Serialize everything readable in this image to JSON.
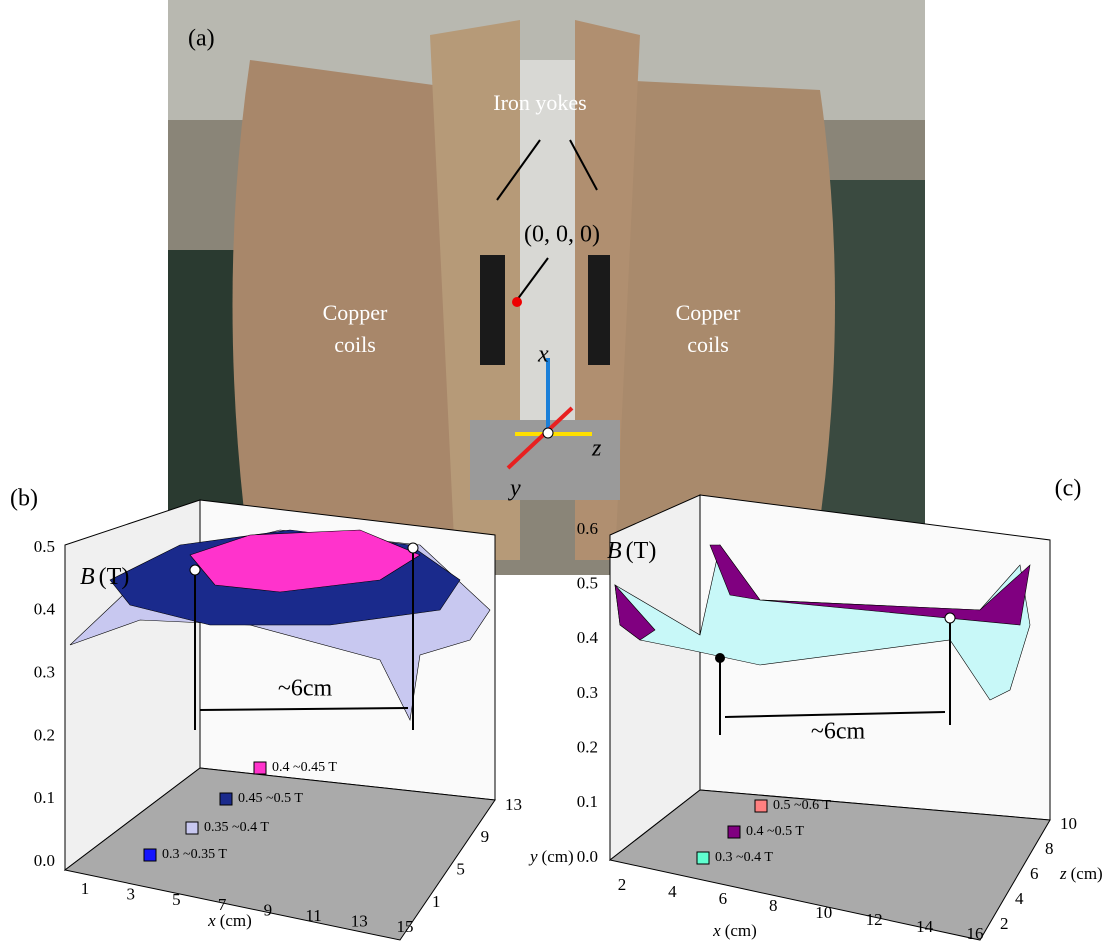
{
  "panel_a": {
    "label": "(a)",
    "iron_yokes": "Iron yokes",
    "origin": "(0, 0, 0)",
    "coils_left": "Copper\ncoils",
    "coils_right": "Copper\ncoils",
    "axis_x": "x",
    "axis_y": "y",
    "axis_z": "z"
  },
  "panel_b": {
    "label": "(b)",
    "b_axis": {
      "symbol": "B",
      "unit": "(T)"
    },
    "b_ticks": [
      "0.0",
      "0.1",
      "0.2",
      "0.3",
      "0.4",
      "0.5"
    ],
    "x_axis": {
      "symbol": "x",
      "unit": "(cm)"
    },
    "x_ticks": [
      "1",
      "3",
      "5",
      "7",
      "9",
      "11",
      "13",
      "15"
    ],
    "y_axis": {
      "symbol": "y",
      "unit": "(cm)"
    },
    "y_ticks": [
      "1",
      "5",
      "9",
      "13"
    ],
    "distance": "~6cm",
    "legend": [
      {
        "label": "0.4 ~0.45 T",
        "color": "#ff33cc"
      },
      {
        "label": "0.45 ~0.5 T",
        "color": "#1a2a8c"
      },
      {
        "label": "0.35 ~0.4 T",
        "color": "#c8c8f0"
      },
      {
        "label": "0.3 ~0.35 T",
        "color": "#1414ff"
      }
    ]
  },
  "panel_c": {
    "label": "(c)",
    "b_axis": {
      "symbol": "B",
      "unit": "(T)"
    },
    "b_ticks": [
      "0.0",
      "0.1",
      "0.2",
      "0.3",
      "0.4",
      "0.5",
      "0.6"
    ],
    "x_axis": {
      "symbol": "x",
      "unit": "(cm)"
    },
    "x_ticks": [
      "2",
      "4",
      "6",
      "8",
      "10",
      "12",
      "14",
      "16"
    ],
    "z_axis": {
      "symbol": "z",
      "unit": "(cm)"
    },
    "z_ticks": [
      "2",
      "4",
      "6",
      "8",
      "10"
    ],
    "distance": "~6cm",
    "legend": [
      {
        "label": "0.5 ~0.6 T",
        "color": "#ff8080"
      },
      {
        "label": "0.4 ~0.5 T",
        "color": "#800080"
      },
      {
        "label": "0.3 ~0.4 T",
        "color": "#60ffd0"
      }
    ]
  }
}
